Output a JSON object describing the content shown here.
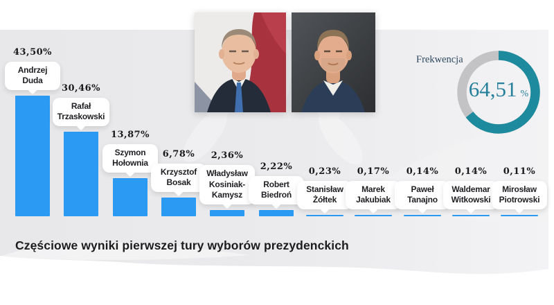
{
  "title": "Częściowe wyniki pierwszej tury wyborów prezydenckich",
  "photos": [
    {
      "subject": "Andrzej Duda"
    },
    {
      "subject": "Rafał Trzaskowski"
    }
  ],
  "chart_data": [
    {
      "type": "bar",
      "title": "Częściowe wyniki pierwszej tury wyborów prezydenckich",
      "categories": [
        "Andrzej Duda",
        "Rafał Trzaskowski",
        "Szymon Hołownia",
        "Krzysztof Bosak",
        "Władysław Kosiniak-Kamysz",
        "Robert Biedroń",
        "Stanisław Żółtek",
        "Marek Jakubiak",
        "Paweł Tanajno",
        "Waldemar Witkowski",
        "Mirosław Piotrowski"
      ],
      "values": [
        43.5,
        30.46,
        13.87,
        6.78,
        2.36,
        2.22,
        0.23,
        0.17,
        0.14,
        0.14,
        0.11
      ],
      "value_labels": [
        "43,50%",
        "30,46%",
        "13,87%",
        "6,78%",
        "2,36%",
        "2,22%",
        "0,23%",
        "0,17%",
        "0,14%",
        "0,14%",
        "0,11%"
      ],
      "bar_color": "#2b9af3",
      "xlabel": "",
      "ylabel": "",
      "legend": false,
      "grid": false
    },
    {
      "type": "donut",
      "label": "Frekwencja",
      "value": 64.51,
      "value_label": "64,51",
      "unit": "%",
      "arc_color": "#1e8a9d",
      "track_color": "#c3c3c5"
    }
  ]
}
